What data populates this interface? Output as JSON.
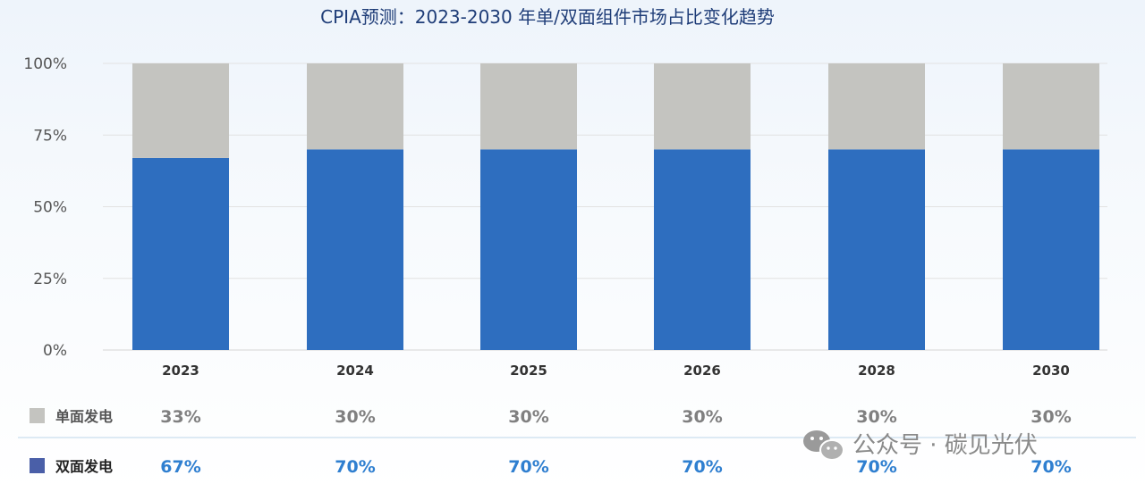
{
  "chart_data": {
    "type": "bar",
    "stacked": true,
    "title": "CPIA预测：2023-2030 年单/双面组件市场占比变化趋势",
    "categories": [
      "2023",
      "2024",
      "2025",
      "2026",
      "2028",
      "2030"
    ],
    "series": [
      {
        "name": "双面发电",
        "values": [
          67,
          70,
          70,
          70,
          70,
          70
        ],
        "labels": [
          "67%",
          "70%",
          "70%",
          "70%",
          "70%",
          "70%"
        ],
        "color": "#2e6ebf"
      },
      {
        "name": "单面发电",
        "values": [
          33,
          30,
          30,
          30,
          30,
          30
        ],
        "labels": [
          "33%",
          "30%",
          "30%",
          "30%",
          "30%",
          "30%"
        ],
        "color": "#c4c4c0"
      }
    ],
    "ylim": [
      0,
      100
    ],
    "yticks": [
      "0%",
      "25%",
      "50%",
      "75%",
      "100%"
    ],
    "grid": true,
    "legend": "bottom-table"
  },
  "watermark": {
    "text": "公众号 · 碳见光伏",
    "icon": "wechat-icon"
  },
  "colors": {
    "title": "#1f3d78",
    "double_legend": "#4a5fa8",
    "double_pct": "#2f7fd0",
    "single_pct": "#808080"
  }
}
